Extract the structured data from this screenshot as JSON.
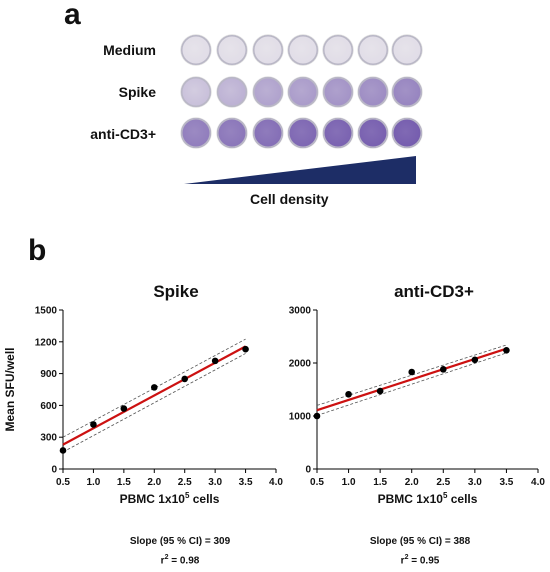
{
  "panel_a": {
    "letter": "a",
    "rows": [
      {
        "label": "Medium",
        "well_intensity": [
          0.05,
          0.05,
          0.05,
          0.05,
          0.05,
          0.05,
          0.05
        ]
      },
      {
        "label": "Spike",
        "well_intensity": [
          0.25,
          0.35,
          0.45,
          0.5,
          0.55,
          0.6,
          0.65
        ]
      },
      {
        "label": "anti-CD3+",
        "well_intensity": [
          0.7,
          0.75,
          0.8,
          0.85,
          0.88,
          0.9,
          0.92
        ]
      }
    ],
    "density_label": "Cell density",
    "colors": {
      "well_base": "#e6e3ea",
      "well_stain": "#6a4fa8",
      "wedge": "#1d2d66"
    }
  },
  "panel_b": {
    "letter": "b"
  },
  "chart_data": [
    {
      "type": "scatter",
      "title": "Spike",
      "xlabel": "PBMC 1x10",
      "xlabel_sup": "5",
      "xlabel_suffix": " cells",
      "ylabel": "Mean SFU/well",
      "xlim": [
        0.5,
        4.0
      ],
      "ylim": [
        0,
        1500
      ],
      "xticks": [
        "0.5",
        "1.0",
        "1.5",
        "2.0",
        "2.5",
        "3.0",
        "3.5",
        "4.0"
      ],
      "yticks": [
        "0",
        "300",
        "600",
        "900",
        "1200",
        "1500"
      ],
      "x": [
        0.5,
        1.0,
        1.5,
        2.0,
        2.5,
        3.0,
        3.5
      ],
      "y": [
        175,
        420,
        570,
        770,
        850,
        1020,
        1130
      ],
      "fit": {
        "x": [
          0.5,
          3.5
        ],
        "y": [
          230,
          1157
        ]
      },
      "ci_upper": {
        "x": [
          0.5,
          3.5
        ],
        "y": [
          300,
          1225
        ]
      },
      "ci_lower": {
        "x": [
          0.5,
          3.5
        ],
        "y": [
          160,
          1090
        ]
      },
      "slope_text": "Slope (95 % CI) = 309",
      "r2_prefix": "r",
      "r2_sup": "2",
      "r2_value": " = 0.98",
      "colors": {
        "fit": "#cc1111",
        "ci": "#555555",
        "point": "#000000"
      }
    },
    {
      "type": "scatter",
      "title": "anti-CD3+",
      "xlabel": "PBMC 1x10",
      "xlabel_sup": "5",
      "xlabel_suffix": " cells",
      "ylabel": "",
      "xlim": [
        0.5,
        4.0
      ],
      "ylim": [
        0,
        3000
      ],
      "xticks": [
        "0.5",
        "1.0",
        "1.5",
        "2.0",
        "2.5",
        "3.0",
        "3.5",
        "4.0"
      ],
      "yticks": [
        "0",
        "1000",
        "2000",
        "3000"
      ],
      "x": [
        0.5,
        1.0,
        1.5,
        2.0,
        2.5,
        3.0,
        3.5
      ],
      "y": [
        1000,
        1410,
        1470,
        1830,
        1880,
        2060,
        2240
      ],
      "fit": {
        "x": [
          0.5,
          3.5
        ],
        "y": [
          1110,
          2270
        ]
      },
      "ci_upper": {
        "x": [
          0.5,
          3.5
        ],
        "y": [
          1200,
          2340
        ]
      },
      "ci_lower": {
        "x": [
          0.5,
          3.5
        ],
        "y": [
          1010,
          2190
        ]
      },
      "slope_text": "Slope (95 % CI) = 388",
      "r2_prefix": "r",
      "r2_sup": "2",
      "r2_value": " = 0.95",
      "colors": {
        "fit": "#cc1111",
        "ci": "#555555",
        "point": "#000000"
      }
    }
  ]
}
